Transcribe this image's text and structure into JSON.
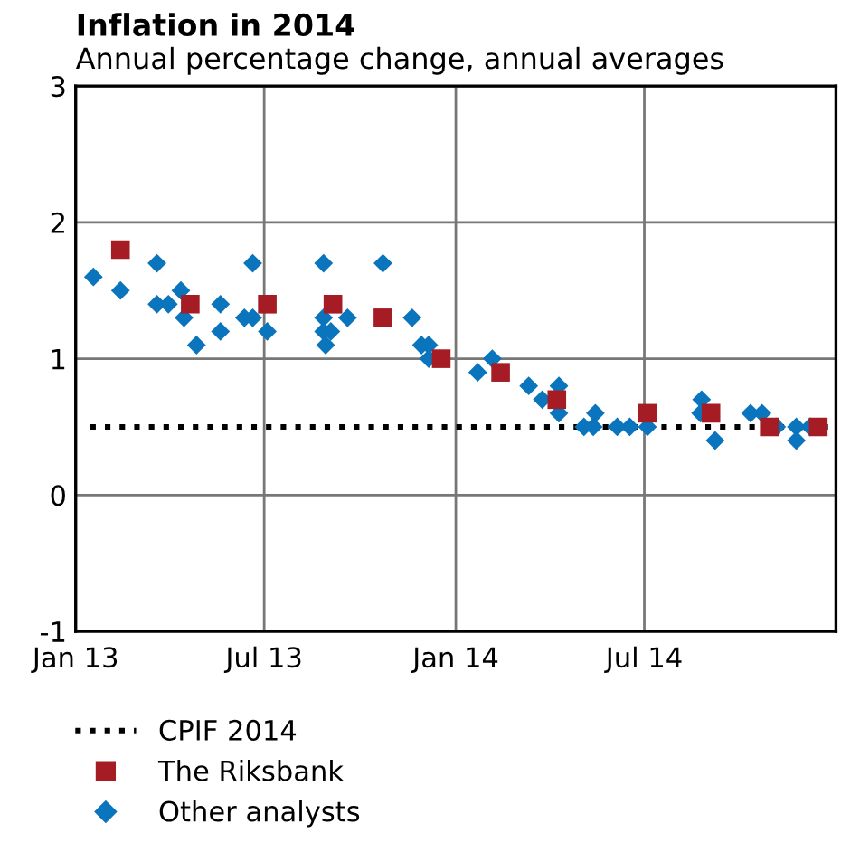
{
  "chart_data": {
    "type": "scatter",
    "title": "Inflation in 2014",
    "subtitle": "Annual percentage change, annual averages",
    "xlim": [
      "2013-01-01",
      "2015-01-01"
    ],
    "xticks": [
      {
        "value": "2013-01-01",
        "label": "Jan 13"
      },
      {
        "value": "2013-07-01",
        "label": "Jul 13"
      },
      {
        "value": "2014-01-01",
        "label": "Jan 14"
      },
      {
        "value": "2014-07-01",
        "label": "Jul 14"
      }
    ],
    "ylim": [
      -1,
      3
    ],
    "yticks": [
      -1,
      0,
      1,
      2,
      3
    ],
    "grid": true,
    "legend": "bottom",
    "series": [
      {
        "name": "CPIF 2014",
        "type": "line",
        "line_style": "dotted",
        "marker": "none",
        "color": "#000000",
        "x": [
          "2013-01-15",
          "2014-12-28"
        ],
        "values": [
          0.5,
          0.5
        ]
      },
      {
        "name": "The Riksbank",
        "marker": "square",
        "color": "#a51c24",
        "x": [
          "2013-02-13",
          "2013-04-21",
          "2013-07-04",
          "2013-09-05",
          "2013-10-23",
          "2013-12-18",
          "2014-02-13",
          "2014-04-08",
          "2014-07-04",
          "2014-09-03",
          "2014-10-29",
          "2014-12-15"
        ],
        "values": [
          1.8,
          1.4,
          1.4,
          1.4,
          1.3,
          1.0,
          0.9,
          0.7,
          0.6,
          0.6,
          0.5,
          0.5
        ]
      },
      {
        "name": "Other analysts",
        "marker": "diamond",
        "color": "#0a74bc",
        "x": [
          "2013-01-18",
          "2013-02-13",
          "2013-03-20",
          "2013-03-20",
          "2013-03-31",
          "2013-04-12",
          "2013-04-15",
          "2013-04-27",
          "2013-05-20",
          "2013-05-20",
          "2013-06-12",
          "2013-06-20",
          "2013-06-20",
          "2013-07-04",
          "2013-08-27",
          "2013-08-27",
          "2013-08-27",
          "2013-09-03",
          "2013-08-29",
          "2013-09-19",
          "2013-10-23",
          "2013-11-20",
          "2013-11-29",
          "2013-12-06",
          "2013-12-06",
          "2014-01-22",
          "2014-02-05",
          "2014-03-12",
          "2014-03-25",
          "2014-04-10",
          "2014-04-10",
          "2014-05-04",
          "2014-05-13",
          "2014-05-15",
          "2014-06-05",
          "2014-06-17",
          "2014-07-04",
          "2014-08-24",
          "2014-08-25",
          "2014-09-07",
          "2014-10-11",
          "2014-10-22",
          "2014-11-05",
          "2014-11-24",
          "2014-12-07",
          "2014-11-24"
        ],
        "values": [
          1.6,
          1.5,
          1.7,
          1.4,
          1.4,
          1.5,
          1.3,
          1.1,
          1.4,
          1.2,
          1.3,
          1.3,
          1.7,
          1.2,
          1.7,
          1.3,
          1.2,
          1.2,
          1.1,
          1.3,
          1.7,
          1.3,
          1.1,
          1.1,
          1.0,
          0.9,
          1.0,
          0.8,
          0.7,
          0.8,
          0.6,
          0.5,
          0.5,
          0.6,
          0.5,
          0.5,
          0.5,
          0.6,
          0.7,
          0.4,
          0.6,
          0.6,
          0.5,
          0.5,
          0.5,
          0.4
        ]
      }
    ]
  }
}
